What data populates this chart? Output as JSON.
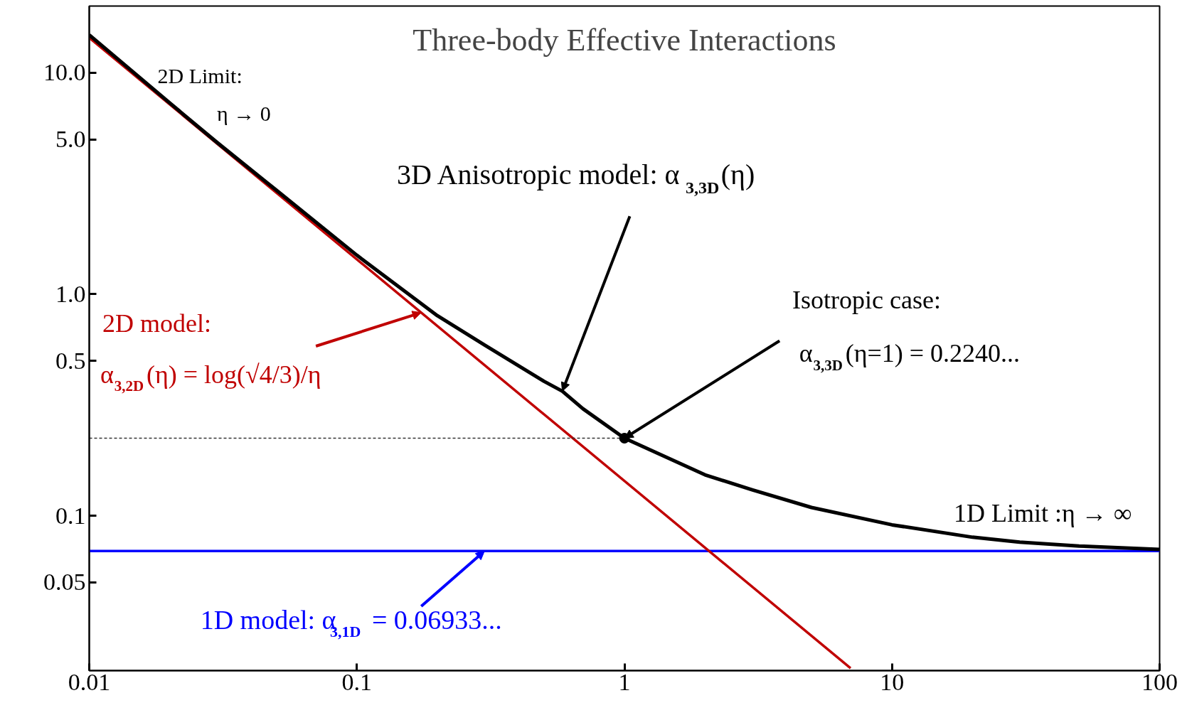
{
  "chart_data": {
    "type": "line",
    "title": "Three-body Effective Interactions",
    "log": "xy",
    "grid": false,
    "xlim": [
      0.01,
      100
    ],
    "ylim": [
      0.02,
      20
    ],
    "xticks": [
      0.01,
      0.1,
      1,
      10,
      100
    ],
    "yticks": [
      {
        "value": 0.05,
        "label": "0.05"
      },
      {
        "value": 0.1,
        "label": "0.1"
      },
      {
        "value": 0.5,
        "label": "0.5"
      },
      {
        "value": 1,
        "label": "1.0"
      },
      {
        "value": 5,
        "label": "5.0"
      },
      {
        "value": 10,
        "label": "10.0"
      }
    ],
    "series": [
      {
        "type": "line",
        "color": "#0000ff",
        "x": [
          0.01,
          100
        ],
        "values": [
          0.06933,
          0.06933
        ]
      },
      {
        "type": "line",
        "color": "#c00000",
        "x": [
          0.01,
          7
        ],
        "values": [
          14.38,
          0.0205
        ]
      },
      {
        "type": "line",
        "color": "#333333",
        "line_style": "dashed",
        "x": [
          0.01,
          1
        ],
        "values": [
          0.224,
          0.224
        ]
      },
      {
        "type": "line",
        "color": "#000000",
        "x": [
          0.01,
          0.02,
          0.03,
          0.05,
          0.1,
          0.2,
          0.3,
          0.5,
          0.586,
          0.7,
          1,
          2,
          3,
          5,
          10,
          20,
          30,
          50,
          100
        ],
        "values": [
          14.8,
          7.3,
          4.85,
          2.95,
          1.5,
          0.8,
          0.59,
          0.405,
          0.365,
          0.304,
          0.224,
          0.153,
          0.131,
          0.109,
          0.091,
          0.08,
          0.076,
          0.073,
          0.0705
        ]
      },
      {
        "type": "scatter",
        "marker": "circle",
        "color": "#000000",
        "x": [
          1
        ],
        "values": [
          0.224
        ]
      }
    ],
    "annotations": [
      "2D Limit:",
      "η → 0",
      {
        "text": "3D Anisotropic model: α$_{3,3D}$(η)",
        "x": 0.586,
        "y": 0.365
      },
      "Isotropic case:",
      {
        "text": "α$_{3,3D}$(η=1) = 0.2240...",
        "x": 1,
        "y": 0.224
      },
      "1D Limit :η → ∞",
      "2D model:",
      {
        "text": "α$_{3,2D}$(η) = log(√4/3)/η",
        "x": 0.174,
        "y": 0.826
      },
      {
        "text": "1D model: α$_{3,1D}$ = 0.06933...",
        "x": 0.3,
        "y": 0.06933
      }
    ]
  }
}
